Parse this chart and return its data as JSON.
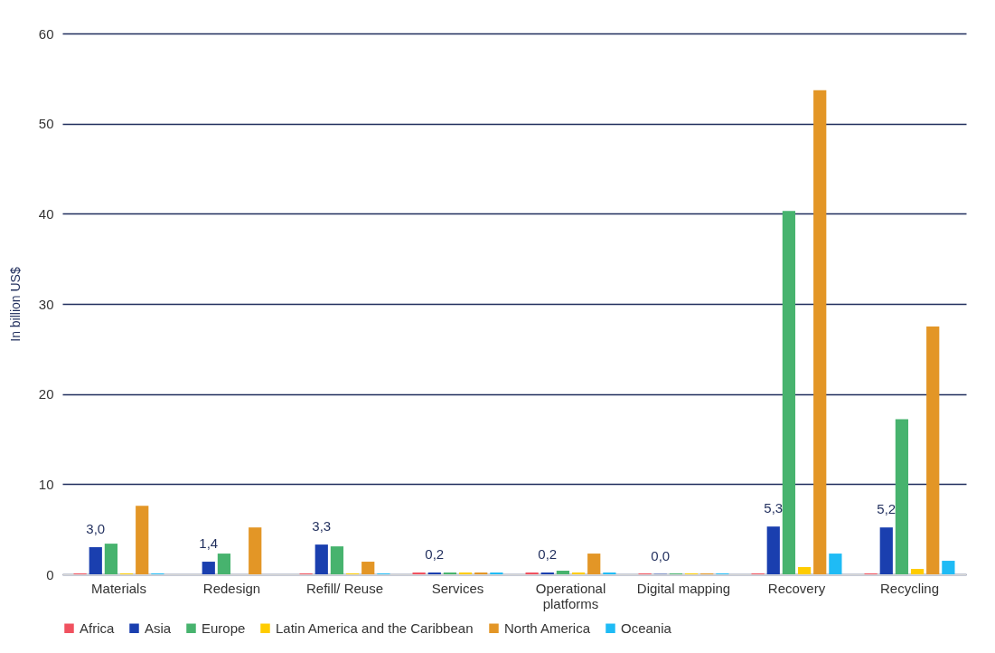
{
  "chart_data": {
    "type": "bar",
    "ylabel": "In billion US$",
    "categories": [
      "Materials",
      "Redesign",
      "Refill/ Reuse",
      "Services",
      "Operational platforms",
      "Digital mapping",
      "Recovery",
      "Recycling"
    ],
    "series": [
      {
        "name": "Africa",
        "color": "#f0515f",
        "values": [
          0.1,
          null,
          0.1,
          0.2,
          0.2,
          0.1,
          0.1,
          0.1
        ]
      },
      {
        "name": "Asia",
        "color": "#1a3faf",
        "values": [
          3.0,
          1.4,
          3.3,
          0.2,
          0.2,
          0.04,
          5.3,
          5.2
        ],
        "value_labels": [
          "3,0",
          "1,4",
          "3,3",
          "0,2",
          "0,2",
          "0,0",
          "5,3",
          "5,2"
        ]
      },
      {
        "name": "Europe",
        "color": "#47b36e",
        "values": [
          3.4,
          2.3,
          3.1,
          0.2,
          0.4,
          0.1,
          40.3,
          17.2
        ]
      },
      {
        "name": "Latin America and the Caribbean",
        "color": "#ffcc00",
        "values": [
          0.1,
          null,
          0.1,
          0.2,
          0.2,
          0.1,
          0.8,
          0.6
        ]
      },
      {
        "name": "North America",
        "color": "#e39626",
        "values": [
          7.6,
          5.2,
          1.4,
          0.2,
          2.3,
          0.1,
          53.7,
          27.5
        ]
      },
      {
        "name": "Oceania",
        "color": "#1fbbf5",
        "values": [
          0.1,
          null,
          0.1,
          0.2,
          0.2,
          0.1,
          2.3,
          1.5
        ]
      }
    ],
    "ylim": [
      0,
      60
    ],
    "yticks": [
      0,
      10,
      20,
      30,
      40,
      50,
      60
    ],
    "grid": "y",
    "legend": "bottom"
  }
}
